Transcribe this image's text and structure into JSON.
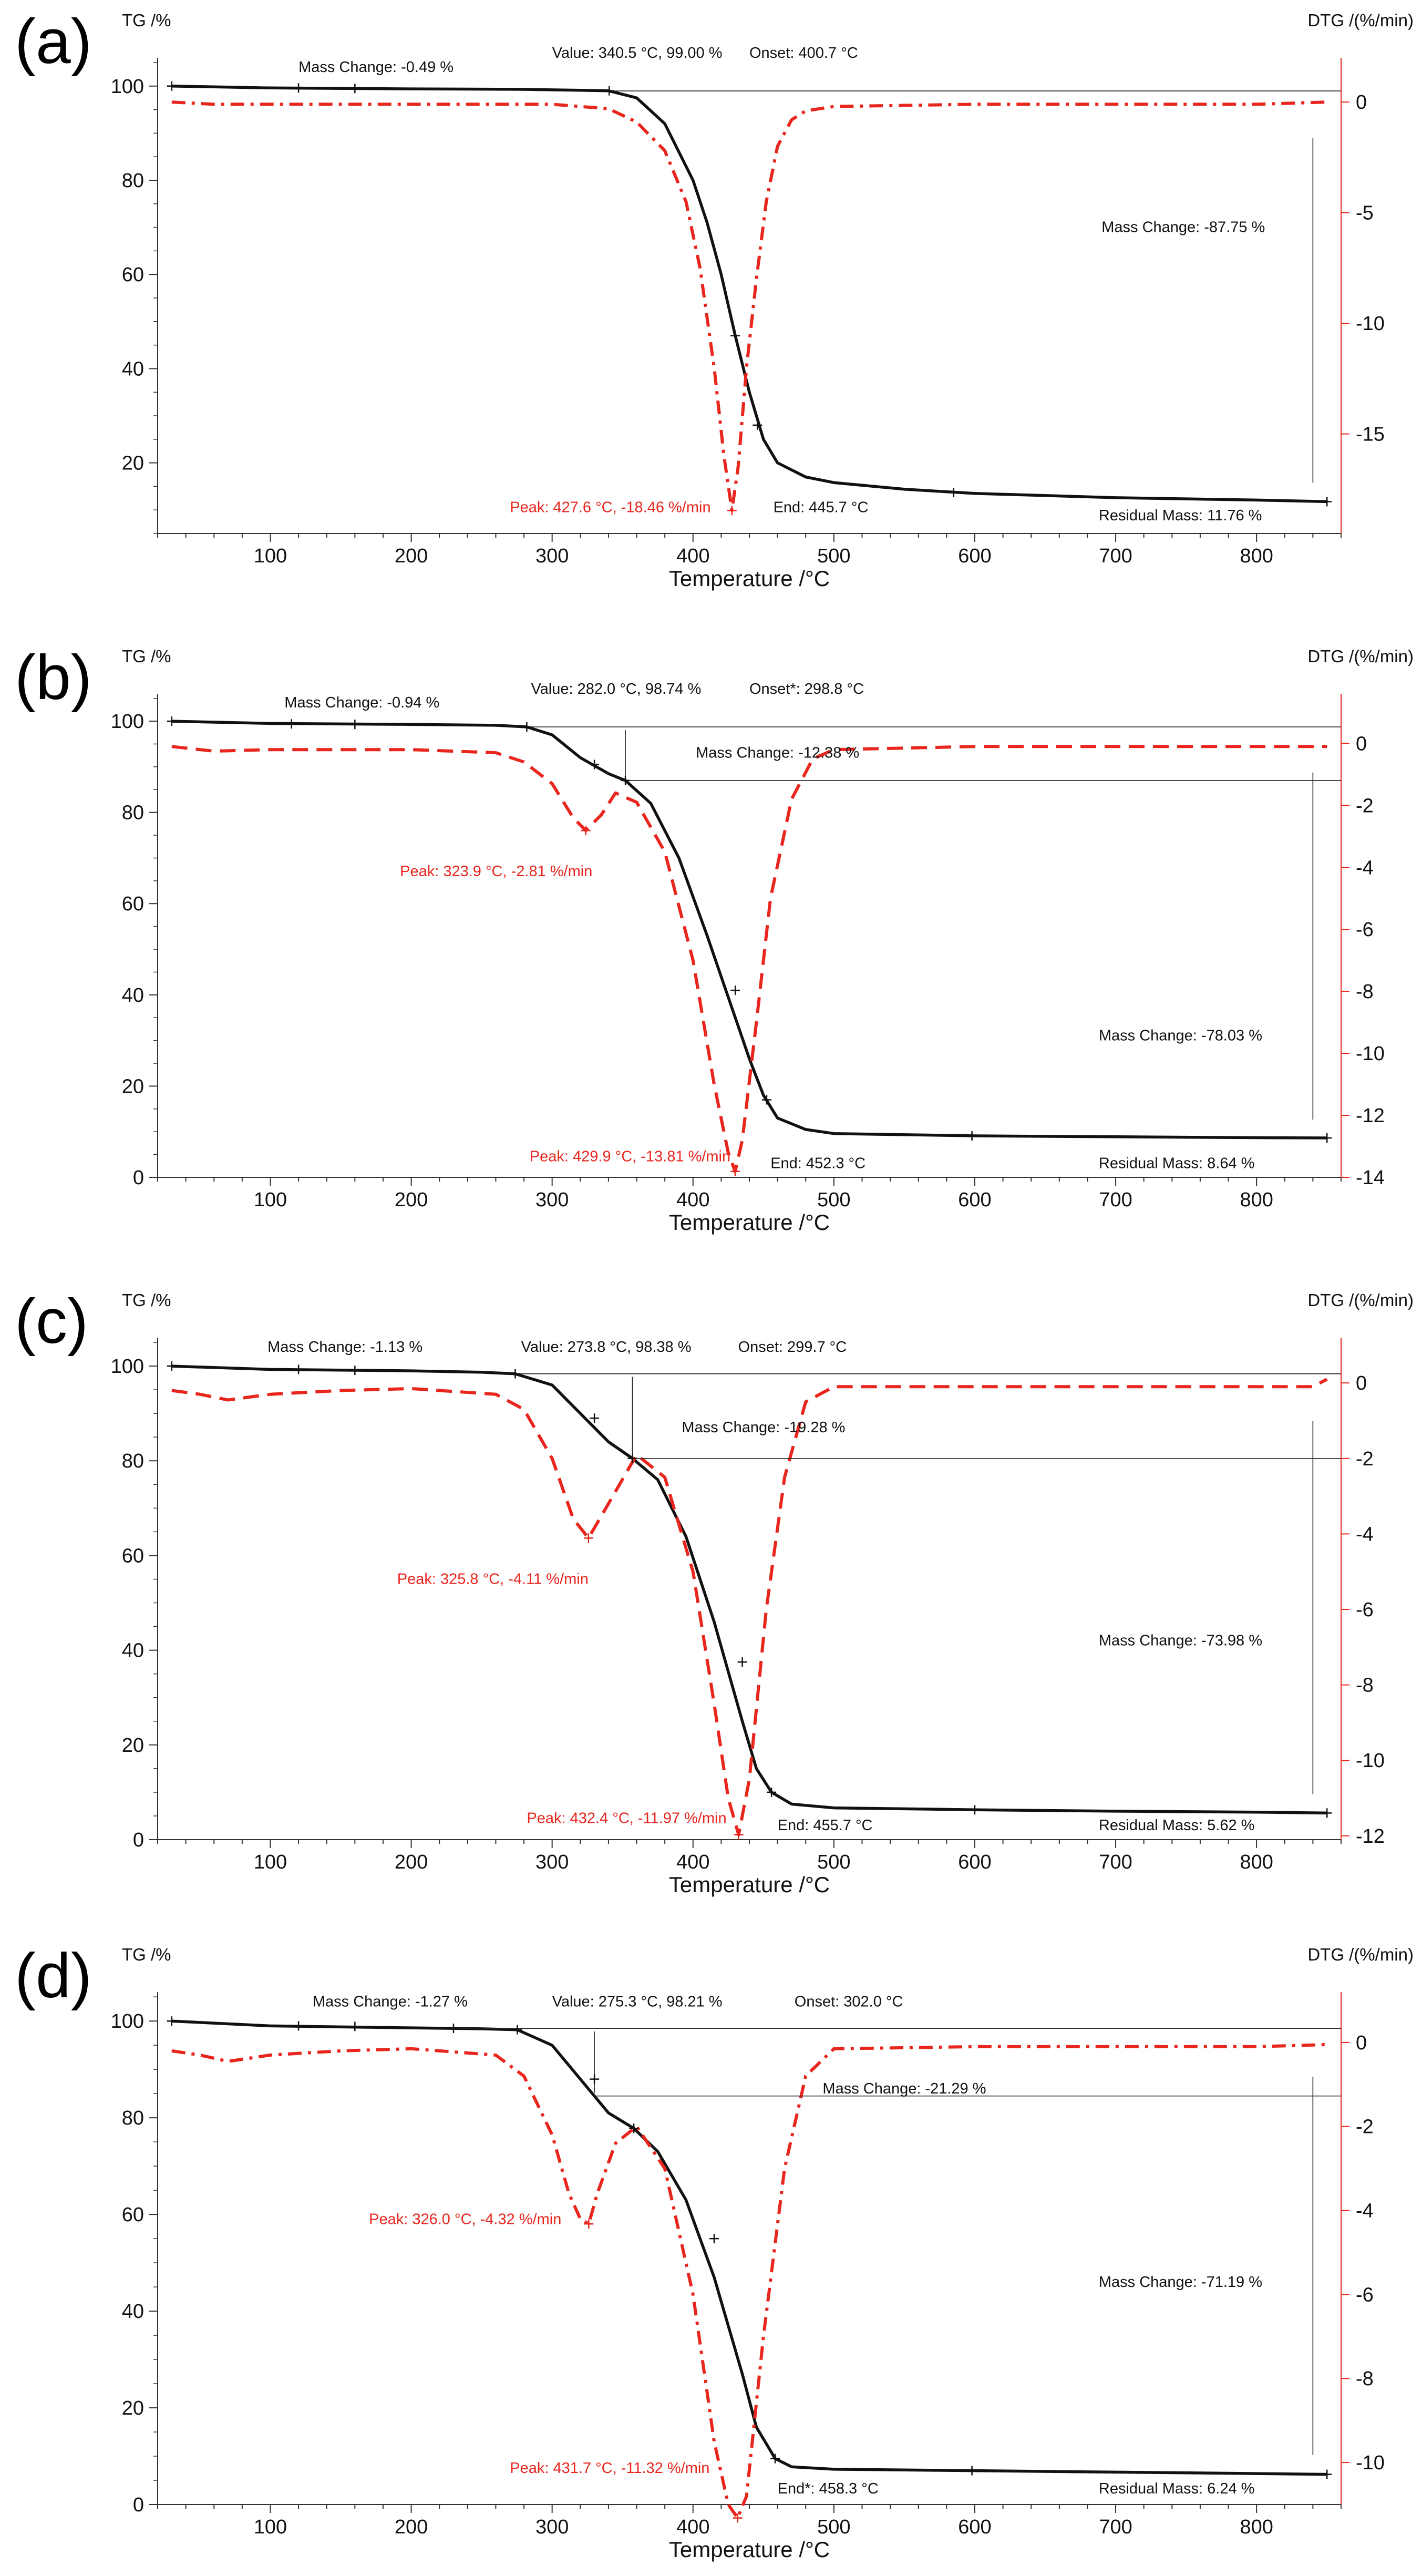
{
  "figure": {
    "background": "#ffffff",
    "tg_color": "#111111",
    "dtg_color": "#e8261e"
  },
  "chart_data": [
    {
      "type": "line",
      "panel_label": "(a)",
      "xlabel": "Temperature /°C",
      "ylabel_left": "TG /%",
      "ylabel_right": "DTG /(%/min)",
      "xlim": [
        20,
        860
      ],
      "ylim_left": [
        5,
        106
      ],
      "ylim_right": [
        -19.5,
        2.0
      ],
      "x_ticks": [
        100,
        200,
        300,
        400,
        500,
        600,
        700,
        800
      ],
      "y_left_ticks": [
        20,
        40,
        60,
        80,
        100
      ],
      "y_right_ticks": [
        0,
        -5,
        -10,
        -15
      ],
      "dtg_dash": "dashdot",
      "series": [
        {
          "name": "TG",
          "axis": "left",
          "color": "#111111",
          "x": [
            30,
            100,
            200,
            280,
            320,
            340,
            360,
            380,
            400,
            410,
            420,
            430,
            440,
            450,
            460,
            480,
            500,
            550,
            600,
            700,
            800,
            850
          ],
          "y": [
            100,
            99.6,
            99.4,
            99.3,
            99.1,
            99.0,
            97.5,
            92,
            80,
            71,
            60,
            47,
            35,
            25,
            20,
            17,
            15.8,
            14.4,
            13.5,
            12.6,
            12.1,
            11.76
          ]
        },
        {
          "name": "DTG",
          "axis": "right",
          "color": "#e8261e",
          "x": [
            30,
            60,
            100,
            200,
            300,
            340,
            360,
            380,
            395,
            405,
            415,
            422,
            427.6,
            432,
            438,
            445,
            452,
            460,
            470,
            480,
            500,
            600,
            700,
            800,
            850
          ],
          "y": [
            0,
            -0.1,
            -0.1,
            -0.1,
            -0.1,
            -0.3,
            -0.9,
            -2.2,
            -4.5,
            -7.5,
            -12,
            -16,
            -18.46,
            -16.5,
            -12,
            -8,
            -4.5,
            -2,
            -0.8,
            -0.4,
            -0.2,
            -0.1,
            -0.1,
            -0.1,
            0
          ]
        }
      ],
      "markers": [
        {
          "axis": "left",
          "x": 30,
          "y": 100
        },
        {
          "axis": "left",
          "x": 120,
          "y": 99.6
        },
        {
          "axis": "left",
          "x": 160,
          "y": 99.5
        },
        {
          "axis": "left",
          "x": 340.5,
          "y": 99.0
        },
        {
          "axis": "left",
          "x": 430,
          "y": 47
        },
        {
          "axis": "left",
          "x": 445.7,
          "y": 28
        },
        {
          "axis": "left",
          "x": 585,
          "y": 13.7
        },
        {
          "axis": "left",
          "x": 850,
          "y": 11.76
        },
        {
          "axis": "right",
          "x": 427.6,
          "y": -18.46
        }
      ],
      "annotations": [
        {
          "text": "Mass Change: -0.49 %",
          "color": "black",
          "x": 120,
          "y": 103
        },
        {
          "text": "Value: 340.5 °C, 99.00 %",
          "color": "black",
          "x": 300,
          "y": 106
        },
        {
          "text": "Onset: 400.7 °C",
          "color": "black",
          "x": 440,
          "y": 106
        },
        {
          "text": "Mass Change: -87.75 %",
          "color": "black",
          "x": 690,
          "y": 69
        },
        {
          "text": "Peak: 427.6 °C, -18.46 %/min",
          "color": "red",
          "x": 270,
          "y": 9.5
        },
        {
          "text": "End: 445.7 °C",
          "color": "black",
          "x": 457,
          "y": 9.5
        },
        {
          "text": "Residual Mass: 11.76 %",
          "color": "black",
          "x": 688,
          "y": 7.8
        }
      ]
    },
    {
      "type": "line",
      "panel_label": "(b)",
      "xlabel": "Temperature /°C",
      "ylabel_left": "TG /%",
      "ylabel_right": "DTG /(%/min)",
      "xlim": [
        20,
        860
      ],
      "ylim_left": [
        0,
        106
      ],
      "ylim_right": [
        -14.0,
        1.6
      ],
      "x_ticks": [
        100,
        200,
        300,
        400,
        500,
        600,
        700,
        800
      ],
      "y_left_ticks": [
        0,
        20,
        40,
        60,
        80,
        100
      ],
      "y_right_ticks": [
        0,
        -2,
        -4,
        -6,
        -8,
        -10,
        -12,
        -14
      ],
      "dtg_dash": "dash",
      "series": [
        {
          "name": "TG",
          "axis": "left",
          "color": "#111111",
          "x": [
            30,
            100,
            200,
            260,
            282,
            300,
            320,
            340,
            352,
            370,
            390,
            410,
            430,
            440,
            450,
            460,
            480,
            500,
            600,
            700,
            800,
            850
          ],
          "y": [
            100,
            99.5,
            99.3,
            99.1,
            98.74,
            97,
            92,
            88.5,
            87,
            82,
            70,
            53,
            35,
            26,
            18,
            13,
            10.5,
            9.6,
            9.1,
            8.9,
            8.7,
            8.64
          ],
          "step": false
        },
        {
          "name": "DTG",
          "axis": "right",
          "color": "#e8261e",
          "x": [
            30,
            60,
            100,
            200,
            260,
            280,
            300,
            315,
            323.9,
            335,
            345,
            360,
            380,
            400,
            415,
            425,
            429.9,
            435,
            445,
            455,
            470,
            485,
            500,
            600,
            700,
            800,
            850
          ],
          "y": [
            -0.1,
            -0.25,
            -0.2,
            -0.2,
            -0.3,
            -0.6,
            -1.3,
            -2.4,
            -2.81,
            -2.3,
            -1.6,
            -1.9,
            -3.5,
            -7,
            -11,
            -13.2,
            -13.81,
            -12.8,
            -9,
            -5,
            -1.8,
            -0.5,
            -0.2,
            -0.1,
            -0.1,
            -0.1,
            -0.1
          ]
        }
      ],
      "markers": [
        {
          "axis": "left",
          "x": 30,
          "y": 100
        },
        {
          "axis": "left",
          "x": 115,
          "y": 99.4
        },
        {
          "axis": "left",
          "x": 160,
          "y": 99.3
        },
        {
          "axis": "left",
          "x": 282,
          "y": 98.74
        },
        {
          "axis": "left",
          "x": 330,
          "y": 90.5
        },
        {
          "axis": "left",
          "x": 352,
          "y": 87
        },
        {
          "axis": "left",
          "x": 430,
          "y": 41
        },
        {
          "axis": "left",
          "x": 452.3,
          "y": 17
        },
        {
          "axis": "left",
          "x": 598,
          "y": 9.1
        },
        {
          "axis": "left",
          "x": 850,
          "y": 8.64
        },
        {
          "axis": "right",
          "x": 323.9,
          "y": -2.81
        },
        {
          "axis": "right",
          "x": 429.9,
          "y": -13.81
        }
      ],
      "annotations": [
        {
          "text": "Mass Change: -0.94 %",
          "color": "black",
          "x": 110,
          "y": 103
        },
        {
          "text": "Value: 282.0 °C, 98.74 %",
          "color": "black",
          "x": 285,
          "y": 106
        },
        {
          "text": "Onset*: 298.8 °C",
          "color": "black",
          "x": 440,
          "y": 106
        },
        {
          "text": "Mass Change: -12.38 %",
          "color": "black",
          "x": 402,
          "y": 92
        },
        {
          "text": "Peak: 323.9 °C, -2.81 %/min",
          "color": "red",
          "x": 192,
          "y": 66
        },
        {
          "text": "Mass Change: -78.03 %",
          "color": "black",
          "x": 688,
          "y": 30
        },
        {
          "text": "Peak: 429.9 °C, -13.81 %/min",
          "color": "red",
          "x": 284,
          "y": 3.5
        },
        {
          "text": "End: 452.3 °C",
          "color": "black",
          "x": 455,
          "y": 2.0
        },
        {
          "text": "Residual Mass: 8.64 %",
          "color": "black",
          "x": 688,
          "y": 2.0
        }
      ]
    },
    {
      "type": "line",
      "panel_label": "(c)",
      "xlabel": "Temperature /°C",
      "ylabel_left": "TG /%",
      "ylabel_right": "DTG /(%/min)",
      "xlim": [
        20,
        860
      ],
      "ylim_left": [
        0,
        106
      ],
      "ylim_right": [
        -12.1,
        1.2
      ],
      "x_ticks": [
        100,
        200,
        300,
        400,
        500,
        600,
        700,
        800
      ],
      "y_left_ticks": [
        0,
        20,
        40,
        60,
        80,
        100
      ],
      "y_right_ticks": [
        0,
        -2,
        -4,
        -6,
        -8,
        -10,
        -12
      ],
      "dtg_dash": "dash",
      "series": [
        {
          "name": "TG",
          "axis": "left",
          "color": "#111111",
          "x": [
            30,
            100,
            200,
            250,
            273.8,
            300,
            320,
            340,
            357,
            375,
            395,
            415,
            435,
            445,
            455.7,
            470,
            500,
            600,
            700,
            800,
            850
          ],
          "y": [
            100,
            99.3,
            99.0,
            98.7,
            98.38,
            96,
            90,
            84,
            80.5,
            76,
            64,
            46,
            25,
            15,
            10,
            7.5,
            6.7,
            6.3,
            6.0,
            5.8,
            5.62
          ]
        },
        {
          "name": "DTG",
          "axis": "right",
          "color": "#e8261e",
          "x": [
            30,
            50,
            70,
            100,
            150,
            200,
            260,
            280,
            300,
            315,
            325.8,
            340,
            360,
            380,
            400,
            415,
            425,
            432.4,
            440,
            452,
            465,
            480,
            500,
            600,
            700,
            800,
            840,
            850
          ],
          "y": [
            -0.2,
            -0.3,
            -0.45,
            -0.3,
            -0.2,
            -0.15,
            -0.3,
            -0.7,
            -2.0,
            -3.6,
            -4.11,
            -3.2,
            -1.9,
            -2.5,
            -5,
            -8.5,
            -11,
            -11.97,
            -10.5,
            -6,
            -2.5,
            -0.5,
            -0.1,
            -0.1,
            -0.1,
            -0.1,
            -0.1,
            0.1
          ]
        }
      ],
      "markers": [
        {
          "axis": "left",
          "x": 30,
          "y": 100
        },
        {
          "axis": "left",
          "x": 120,
          "y": 99.3
        },
        {
          "axis": "left",
          "x": 160,
          "y": 99.1
        },
        {
          "axis": "left",
          "x": 273.8,
          "y": 98.38
        },
        {
          "axis": "left",
          "x": 330,
          "y": 89
        },
        {
          "axis": "left",
          "x": 357,
          "y": 80.5
        },
        {
          "axis": "left",
          "x": 435,
          "y": 37.5
        },
        {
          "axis": "left",
          "x": 455.7,
          "y": 10
        },
        {
          "axis": "left",
          "x": 600,
          "y": 6.3
        },
        {
          "axis": "left",
          "x": 850,
          "y": 5.62
        },
        {
          "axis": "right",
          "x": 325.8,
          "y": -4.11
        },
        {
          "axis": "right",
          "x": 432.4,
          "y": -11.97
        }
      ],
      "annotations": [
        {
          "text": "Mass Change: -1.13 %",
          "color": "black",
          "x": 98,
          "y": 103
        },
        {
          "text": "Value: 273.8 °C, 98.38 %",
          "color": "black",
          "x": 278,
          "y": 103
        },
        {
          "text": "Onset: 299.7 °C",
          "color": "black",
          "x": 432,
          "y": 103
        },
        {
          "text": "Mass Change: -19.28 %",
          "color": "black",
          "x": 392,
          "y": 86
        },
        {
          "text": "Peak: 325.8 °C, -4.11 %/min",
          "color": "red",
          "x": 190,
          "y": 54
        },
        {
          "text": "Mass Change: -73.98 %",
          "color": "black",
          "x": 688,
          "y": 41
        },
        {
          "text": "Peak: 432.4 °C, -11.97 %/min",
          "color": "red",
          "x": 282,
          "y": 3.5
        },
        {
          "text": "End: 455.7 °C",
          "color": "black",
          "x": 460,
          "y": 2.0
        },
        {
          "text": "Residual Mass: 5.62 %",
          "color": "black",
          "x": 688,
          "y": 2.0
        }
      ]
    },
    {
      "type": "line",
      "panel_label": "(d)",
      "xlabel": "Temperature /°C",
      "ylabel_left": "TG /%",
      "ylabel_right": "DTG /(%/min)",
      "xlim": [
        20,
        860
      ],
      "ylim_left": [
        0,
        106
      ],
      "ylim_right": [
        -11.0,
        1.2
      ],
      "x_ticks": [
        100,
        200,
        300,
        400,
        500,
        600,
        700,
        800
      ],
      "y_left_ticks": [
        0,
        20,
        40,
        60,
        80,
        100
      ],
      "y_right_ticks": [
        0,
        -2,
        -4,
        -6,
        -8,
        -10
      ],
      "dtg_dash": "dashdot",
      "series": [
        {
          "name": "TG",
          "axis": "left",
          "color": "#111111",
          "x": [
            30,
            100,
            200,
            250,
            275.3,
            300,
            320,
            340,
            358,
            375,
            395,
            415,
            435,
            445,
            458.3,
            470,
            500,
            600,
            700,
            800,
            850
          ],
          "y": [
            100,
            99.0,
            98.6,
            98.4,
            98.21,
            95,
            88,
            81,
            77.8,
            73,
            63,
            47,
            27,
            16,
            9.5,
            7.8,
            7.3,
            7.0,
            6.7,
            6.4,
            6.24
          ]
        },
        {
          "name": "DTG",
          "axis": "right",
          "color": "#e8261e",
          "x": [
            30,
            50,
            70,
            100,
            150,
            200,
            260,
            280,
            300,
            312,
            320,
            326,
            332,
            345,
            360,
            380,
            400,
            415,
            425,
            431.7,
            438,
            450,
            465,
            480,
            500,
            600,
            700,
            800,
            850
          ],
          "y": [
            -0.2,
            -0.3,
            -0.45,
            -0.3,
            -0.2,
            -0.15,
            -0.3,
            -0.8,
            -2.2,
            -3.6,
            -4.2,
            -4.32,
            -3.6,
            -2.4,
            -2.0,
            -3,
            -6,
            -9.5,
            -11,
            -11.32,
            -10.8,
            -7,
            -3,
            -0.8,
            -0.15,
            -0.1,
            -0.1,
            -0.1,
            -0.05
          ]
        }
      ],
      "markers": [
        {
          "axis": "left",
          "x": 30,
          "y": 100
        },
        {
          "axis": "left",
          "x": 120,
          "y": 99.0
        },
        {
          "axis": "left",
          "x": 160,
          "y": 98.9
        },
        {
          "axis": "left",
          "x": 230,
          "y": 98.5
        },
        {
          "axis": "left",
          "x": 275.3,
          "y": 98.21
        },
        {
          "axis": "left",
          "x": 330,
          "y": 88
        },
        {
          "axis": "left",
          "x": 358,
          "y": 77.8
        },
        {
          "axis": "left",
          "x": 415,
          "y": 55
        },
        {
          "axis": "left",
          "x": 458.3,
          "y": 9.5
        },
        {
          "axis": "left",
          "x": 598,
          "y": 7.0
        },
        {
          "axis": "left",
          "x": 850,
          "y": 6.24
        },
        {
          "axis": "right",
          "x": 326,
          "y": -4.32
        },
        {
          "axis": "right",
          "x": 431.7,
          "y": -11.32
        }
      ],
      "annotations": [
        {
          "text": "Mass Change: -1.27 %",
          "color": "black",
          "x": 130,
          "y": 103
        },
        {
          "text": "Value: 275.3 °C, 98.21 %",
          "color": "black",
          "x": 300,
          "y": 103
        },
        {
          "text": "Onset: 302.0 °C",
          "color": "black",
          "x": 472,
          "y": 103
        },
        {
          "text": "Mass Change: -21.29 %",
          "color": "black",
          "x": 492,
          "y": 85
        },
        {
          "text": "Peak: 326.0 °C, -4.32 %/min",
          "color": "red",
          "x": 170,
          "y": 58
        },
        {
          "text": "Mass Change: -71.19 %",
          "color": "black",
          "x": 688,
          "y": 45
        },
        {
          "text": "Peak: 431.7 °C, -11.32 %/min",
          "color": "red",
          "x": 270,
          "y": 6.5
        },
        {
          "text": "End*: 458.3 °C",
          "color": "black",
          "x": 460,
          "y": 2.3
        },
        {
          "text": "Residual Mass: 6.24 %",
          "color": "black",
          "x": 688,
          "y": 2.3
        }
      ]
    }
  ]
}
